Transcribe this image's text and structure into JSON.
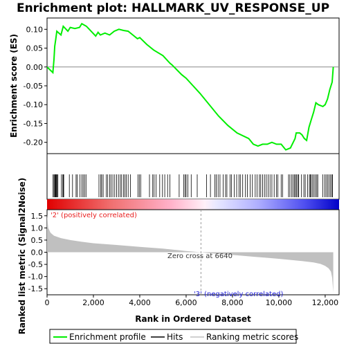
{
  "chart_data": {
    "type": "line",
    "title": "Enrichment plot: HALLMARK_UV_RESPONSE_UP",
    "xlabel": "Rank in Ordered Dataset",
    "ylabel_top": "Enrichment score (ES)",
    "ylabel_bottom": "Ranked list metric (Signal2Noise)",
    "xlim": [
      0,
      12600
    ],
    "es_ylim": [
      -0.23,
      0.13
    ],
    "metric_ylim": [
      -1.75,
      1.75
    ],
    "x_ticks": [
      0,
      2000,
      4000,
      6000,
      8000,
      10000,
      12000
    ],
    "x_tick_labels": [
      "0",
      "2,000",
      "4,000",
      "6,000",
      "8,000",
      "10,000",
      "12,000"
    ],
    "es_ticks": [
      0.1,
      0.05,
      0.0,
      -0.05,
      -0.1,
      -0.15,
      -0.2
    ],
    "es_tick_labels": [
      "0.10",
      "0.05",
      "0.00",
      "-0.05",
      "-0.10",
      "-0.15",
      "-0.20"
    ],
    "metric_ticks": [
      1.5,
      1.0,
      0.5,
      0.0,
      -0.5,
      -1.0,
      -1.5
    ],
    "metric_tick_labels": [
      "1.5",
      "1.0",
      "0.5",
      "0.0",
      "-0.5",
      "-1.0",
      "-1.5"
    ],
    "series": [
      {
        "name": "Enrichment profile",
        "color": "#00ee00",
        "x": [
          0,
          250,
          300,
          330,
          380,
          420,
          600,
          700,
          900,
          1000,
          1200,
          1400,
          1500,
          1700,
          1900,
          2100,
          2200,
          2300,
          2500,
          2700,
          2900,
          3100,
          3300,
          3500,
          3700,
          3900,
          4000,
          4300,
          4600,
          5000,
          5300,
          5400,
          5800,
          6000,
          6300,
          6600,
          7000,
          7400,
          7800,
          8200,
          8700,
          8900,
          9100,
          9300,
          9500,
          9700,
          9900,
          10100,
          10300,
          10500,
          10700,
          10750,
          10900,
          11000,
          11100,
          11200,
          11300,
          11400,
          11500,
          11600,
          11700,
          11900,
          12000,
          12100,
          12200,
          12300,
          12350
        ],
        "y": [
          0.0,
          -0.015,
          0.02,
          0.055,
          0.075,
          0.095,
          0.085,
          0.108,
          0.095,
          0.105,
          0.102,
          0.105,
          0.115,
          0.108,
          0.095,
          0.082,
          0.092,
          0.085,
          0.09,
          0.085,
          0.095,
          0.1,
          0.097,
          0.095,
          0.085,
          0.075,
          0.078,
          0.06,
          0.045,
          0.03,
          0.01,
          0.005,
          -0.02,
          -0.03,
          -0.05,
          -0.07,
          -0.1,
          -0.13,
          -0.155,
          -0.175,
          -0.19,
          -0.205,
          -0.21,
          -0.205,
          -0.205,
          -0.2,
          -0.205,
          -0.205,
          -0.22,
          -0.215,
          -0.19,
          -0.175,
          -0.175,
          -0.18,
          -0.19,
          -0.195,
          -0.16,
          -0.14,
          -0.12,
          -0.095,
          -0.1,
          -0.105,
          -0.1,
          -0.085,
          -0.06,
          -0.04,
          0.0
        ]
      },
      {
        "name": "Hits",
        "color": "#000000",
        "x": [
          260,
          300,
          330,
          360,
          380,
          400,
          430,
          470,
          620,
          680,
          700,
          720,
          960,
          1100,
          1250,
          1300,
          1420,
          1500,
          1560,
          1620,
          1680,
          2240,
          2320,
          2360,
          2420,
          2560,
          2620,
          2700,
          2760,
          2840,
          2920,
          3000,
          3080,
          3160,
          3220,
          3300,
          3360,
          3420,
          3500,
          3600,
          3920,
          3980,
          4040,
          4420,
          4560,
          4620,
          4700,
          4860,
          4980,
          5080,
          5200,
          5300,
          5700,
          5900,
          5960,
          6000,
          6080,
          6220,
          6480,
          6880,
          7050,
          7240,
          7300,
          7380,
          7460,
          7600,
          7700,
          7760,
          7900,
          7960,
          8080,
          8180,
          8280,
          8340,
          8440,
          8560,
          8640,
          8760,
          8860,
          8980,
          9060,
          9160,
          9220,
          9300,
          9380,
          9460,
          9540,
          9620,
          9700,
          9800,
          9900,
          9960,
          10100,
          10160,
          10420,
          10480,
          10560,
          10620,
          10680,
          10720,
          10760,
          10820,
          10860,
          10980,
          11080,
          11140,
          11240,
          11320,
          11360,
          11400,
          11460,
          11520,
          11580,
          11640,
          11680,
          11900,
          11980,
          12040,
          12100,
          12160,
          12220,
          12280,
          12320
        ]
      },
      {
        "name": "Ranking metric scores",
        "color": "#c0c0c0",
        "x": [
          0,
          50,
          150,
          300,
          600,
          1000,
          1500,
          2000,
          3000,
          4000,
          5000,
          5500,
          6000,
          6640,
          7000,
          8000,
          9000,
          10000,
          11000,
          11500,
          11800,
          12000,
          12150,
          12250,
          12300,
          12350
        ],
        "y": [
          1.55,
          1.0,
          0.8,
          0.68,
          0.58,
          0.5,
          0.43,
          0.37,
          0.3,
          0.22,
          0.15,
          0.1,
          0.05,
          0.0,
          -0.04,
          -0.11,
          -0.19,
          -0.27,
          -0.36,
          -0.42,
          -0.48,
          -0.56,
          -0.66,
          -0.8,
          -1.05,
          -1.65
        ]
      }
    ],
    "zero_cross_x": 6640,
    "legend": {
      "position": "bottom",
      "entries": [
        "Enrichment profile",
        "Hits",
        "Ranking metric scores"
      ]
    },
    "annotations": {
      "zero_cross": "Zero cross at 6640",
      "positive": "'2' (positively correlated)",
      "negative": "'3' (negatively correlated)"
    },
    "colors": {
      "positive_end": "#e00000",
      "negative_end": "#0000d0",
      "frame": "#000000"
    }
  }
}
